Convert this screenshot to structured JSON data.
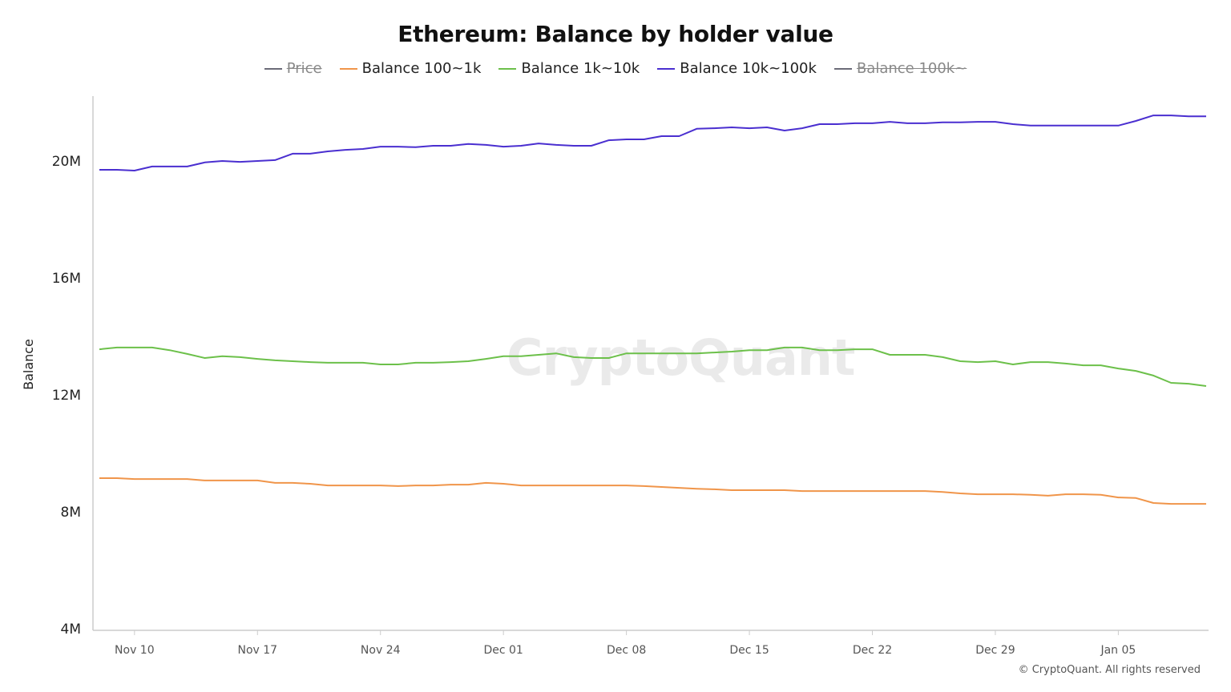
{
  "chart_data": {
    "type": "line",
    "title": "Ethereum: Balance by holder value",
    "ylabel": "Balance",
    "xlabel": "",
    "ylim": [
      4000000,
      22000000
    ],
    "yticks": [
      "4M",
      "8M",
      "12M",
      "16M",
      "20M"
    ],
    "ytick_values": [
      4000000,
      8000000,
      12000000,
      16000000,
      20000000
    ],
    "xticks": [
      "Nov 10",
      "Nov 17",
      "Nov 24",
      "Dec 01",
      "Dec 08",
      "Dec 15",
      "Dec 22",
      "Dec 29",
      "Jan 05"
    ],
    "grid": false,
    "legend_position": "top",
    "legend": [
      {
        "name": "Price",
        "color": "#6b6b78",
        "hidden": true
      },
      {
        "name": "Balance 100~1k",
        "color": "#f0954a",
        "hidden": false
      },
      {
        "name": "Balance 1k~10k",
        "color": "#6cc04a",
        "hidden": false
      },
      {
        "name": "Balance 10k~100k",
        "color": "#4a2fd0",
        "hidden": false
      },
      {
        "name": "Balance 100k~",
        "color": "#6b6b78",
        "hidden": true
      }
    ],
    "x": [
      "Nov 08",
      "Nov 09",
      "Nov 10",
      "Nov 11",
      "Nov 12",
      "Nov 13",
      "Nov 14",
      "Nov 15",
      "Nov 16",
      "Nov 17",
      "Nov 18",
      "Nov 19",
      "Nov 20",
      "Nov 21",
      "Nov 22",
      "Nov 23",
      "Nov 24",
      "Nov 25",
      "Nov 26",
      "Nov 27",
      "Nov 28",
      "Nov 29",
      "Nov 30",
      "Dec 01",
      "Dec 02",
      "Dec 03",
      "Dec 04",
      "Dec 05",
      "Dec 06",
      "Dec 07",
      "Dec 08",
      "Dec 09",
      "Dec 10",
      "Dec 11",
      "Dec 12",
      "Dec 13",
      "Dec 14",
      "Dec 15",
      "Dec 16",
      "Dec 17",
      "Dec 18",
      "Dec 19",
      "Dec 20",
      "Dec 21",
      "Dec 22",
      "Dec 23",
      "Dec 24",
      "Dec 25",
      "Dec 26",
      "Dec 27",
      "Dec 28",
      "Dec 29",
      "Dec 30",
      "Dec 31",
      "Jan 01",
      "Jan 02",
      "Jan 03",
      "Jan 04",
      "Jan 05",
      "Jan 06",
      "Jan 07",
      "Jan 08",
      "Jan 09",
      "Jan 10"
    ],
    "series": [
      {
        "name": "Balance 100~1k",
        "color": "#f0954a",
        "unit": "M",
        "values": [
          9.15,
          9.15,
          9.12,
          9.12,
          9.12,
          9.12,
          9.07,
          9.07,
          9.07,
          9.07,
          8.99,
          8.99,
          8.96,
          8.9,
          8.9,
          8.9,
          8.9,
          8.88,
          8.9,
          8.9,
          8.93,
          8.93,
          8.99,
          8.96,
          8.9,
          8.9,
          8.9,
          8.9,
          8.9,
          8.9,
          8.9,
          8.88,
          8.85,
          8.82,
          8.79,
          8.77,
          8.74,
          8.74,
          8.74,
          8.74,
          8.71,
          8.71,
          8.71,
          8.71,
          8.71,
          8.71,
          8.71,
          8.71,
          8.68,
          8.63,
          8.6,
          8.6,
          8.6,
          8.58,
          8.55,
          8.6,
          8.6,
          8.58,
          8.49,
          8.47,
          8.3,
          8.27,
          8.27,
          8.27
        ]
      },
      {
        "name": "Balance 1k~10k",
        "color": "#6cc04a",
        "unit": "M",
        "values": [
          13.56,
          13.62,
          13.62,
          13.62,
          13.53,
          13.4,
          13.26,
          13.32,
          13.29,
          13.23,
          13.18,
          13.15,
          13.12,
          13.1,
          13.1,
          13.1,
          13.04,
          13.04,
          13.1,
          13.1,
          13.12,
          13.15,
          13.23,
          13.32,
          13.32,
          13.37,
          13.42,
          13.29,
          13.26,
          13.26,
          13.42,
          13.42,
          13.42,
          13.42,
          13.42,
          13.45,
          13.48,
          13.53,
          13.53,
          13.62,
          13.62,
          13.53,
          13.53,
          13.56,
          13.56,
          13.37,
          13.37,
          13.37,
          13.29,
          13.15,
          13.12,
          13.15,
          13.04,
          13.12,
          13.12,
          13.07,
          13.01,
          13.01,
          12.9,
          12.82,
          12.66,
          12.41,
          12.38,
          12.3
        ]
      },
      {
        "name": "Balance 10k~100k",
        "color": "#4a2fd0",
        "unit": "M",
        "values": [
          19.7,
          19.7,
          19.67,
          19.81,
          19.81,
          19.81,
          19.95,
          20.0,
          19.97,
          20.0,
          20.03,
          20.25,
          20.25,
          20.33,
          20.38,
          20.41,
          20.49,
          20.49,
          20.47,
          20.52,
          20.52,
          20.58,
          20.55,
          20.49,
          20.52,
          20.6,
          20.55,
          20.52,
          20.52,
          20.71,
          20.74,
          20.74,
          20.85,
          20.85,
          21.1,
          21.12,
          21.15,
          21.12,
          21.15,
          21.04,
          21.12,
          21.26,
          21.26,
          21.29,
          21.29,
          21.34,
          21.29,
          21.29,
          21.32,
          21.32,
          21.34,
          21.34,
          21.26,
          21.21,
          21.21,
          21.21,
          21.21,
          21.21,
          21.21,
          21.37,
          21.56,
          21.56,
          21.53,
          21.53
        ]
      }
    ]
  },
  "watermark": "CryptoQuant",
  "footer": "© CryptoQuant. All rights reserved"
}
